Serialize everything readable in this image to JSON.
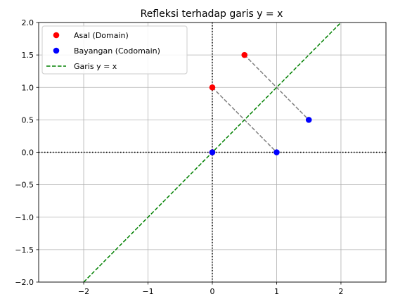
{
  "chart_data": {
    "type": "scatter",
    "title": "Refleksi terhadap garis y = x",
    "xlabel": "",
    "ylabel": "",
    "xlim": [
      -2.7,
      2.7
    ],
    "ylim": [
      -2.0,
      2.0
    ],
    "grid": true,
    "legend_position": "top-left",
    "x_ticks": [
      {
        "value": -2,
        "label": "−2"
      },
      {
        "value": -1,
        "label": "−1"
      },
      {
        "value": 0,
        "label": "0"
      },
      {
        "value": 1,
        "label": "1"
      },
      {
        "value": 2,
        "label": "2"
      }
    ],
    "y_ticks": [
      {
        "value": -2.0,
        "label": "−2.0"
      },
      {
        "value": -1.5,
        "label": "−1.5"
      },
      {
        "value": -1.0,
        "label": "−1.0"
      },
      {
        "value": -0.5,
        "label": "−0.5"
      },
      {
        "value": 0.0,
        "label": "0.0"
      },
      {
        "value": 0.5,
        "label": "0.5"
      },
      {
        "value": 1.0,
        "label": "1.0"
      },
      {
        "value": 1.5,
        "label": "1.5"
      },
      {
        "value": 2.0,
        "label": "2.0"
      }
    ],
    "series": [
      {
        "name": "Asal (Domain)",
        "kind": "points",
        "color": "#ff0000",
        "points": [
          [
            0,
            0
          ],
          [
            0,
            1
          ],
          [
            0.5,
            1.5
          ]
        ]
      },
      {
        "name": "Bayangan (Codomain)",
        "kind": "points",
        "color": "#0000ff",
        "points": [
          [
            0,
            0
          ],
          [
            1,
            0
          ],
          [
            1.5,
            0.5
          ]
        ]
      },
      {
        "name": "Garis y = x",
        "kind": "line",
        "color": "#008000",
        "style": "dashed",
        "points": [
          [
            -2,
            -2
          ],
          [
            2,
            2
          ]
        ]
      }
    ],
    "connectors": [
      {
        "from": [
          0,
          1
        ],
        "to": [
          1,
          0
        ]
      },
      {
        "from": [
          0.5,
          1.5
        ],
        "to": [
          1.5,
          0.5
        ]
      }
    ],
    "connector_color": "#808080",
    "reference_lines": [
      {
        "axis": "y",
        "value": 0
      },
      {
        "axis": "x",
        "value": 0
      }
    ]
  }
}
